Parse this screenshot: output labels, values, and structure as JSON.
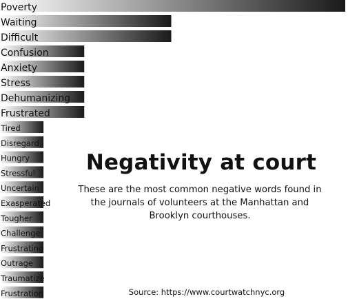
{
  "chart_data": {
    "type": "bar",
    "orientation": "horizontal",
    "categories": [
      "Poverty",
      "Waiting",
      "Difficult",
      "Confusion",
      "Anxiety",
      "Stress",
      "Dehumanizing",
      "Frustrated",
      "Tired",
      "Disregard",
      "Hungry",
      "Stressful",
      "Uncertain",
      "Exasperated",
      "Tougher",
      "Challenge",
      "Frustrating",
      "Outrage",
      "Traumatize",
      "Frustration"
    ],
    "values": [
      8,
      4,
      4,
      2,
      2,
      2,
      2,
      2,
      1,
      1,
      1,
      1,
      1,
      1,
      1,
      1,
      1,
      1,
      1,
      1
    ],
    "title": "Negativity at court",
    "subtitle": "These are the most common negative words found in the journals of volunteers at the Manhattan and Brooklyn courthouses.",
    "source": "Source: https://www.courtwatchnyc.org",
    "grid": false,
    "legend": "none",
    "bar_gradient": [
      "#ffffff",
      "#1a1a1a"
    ]
  }
}
